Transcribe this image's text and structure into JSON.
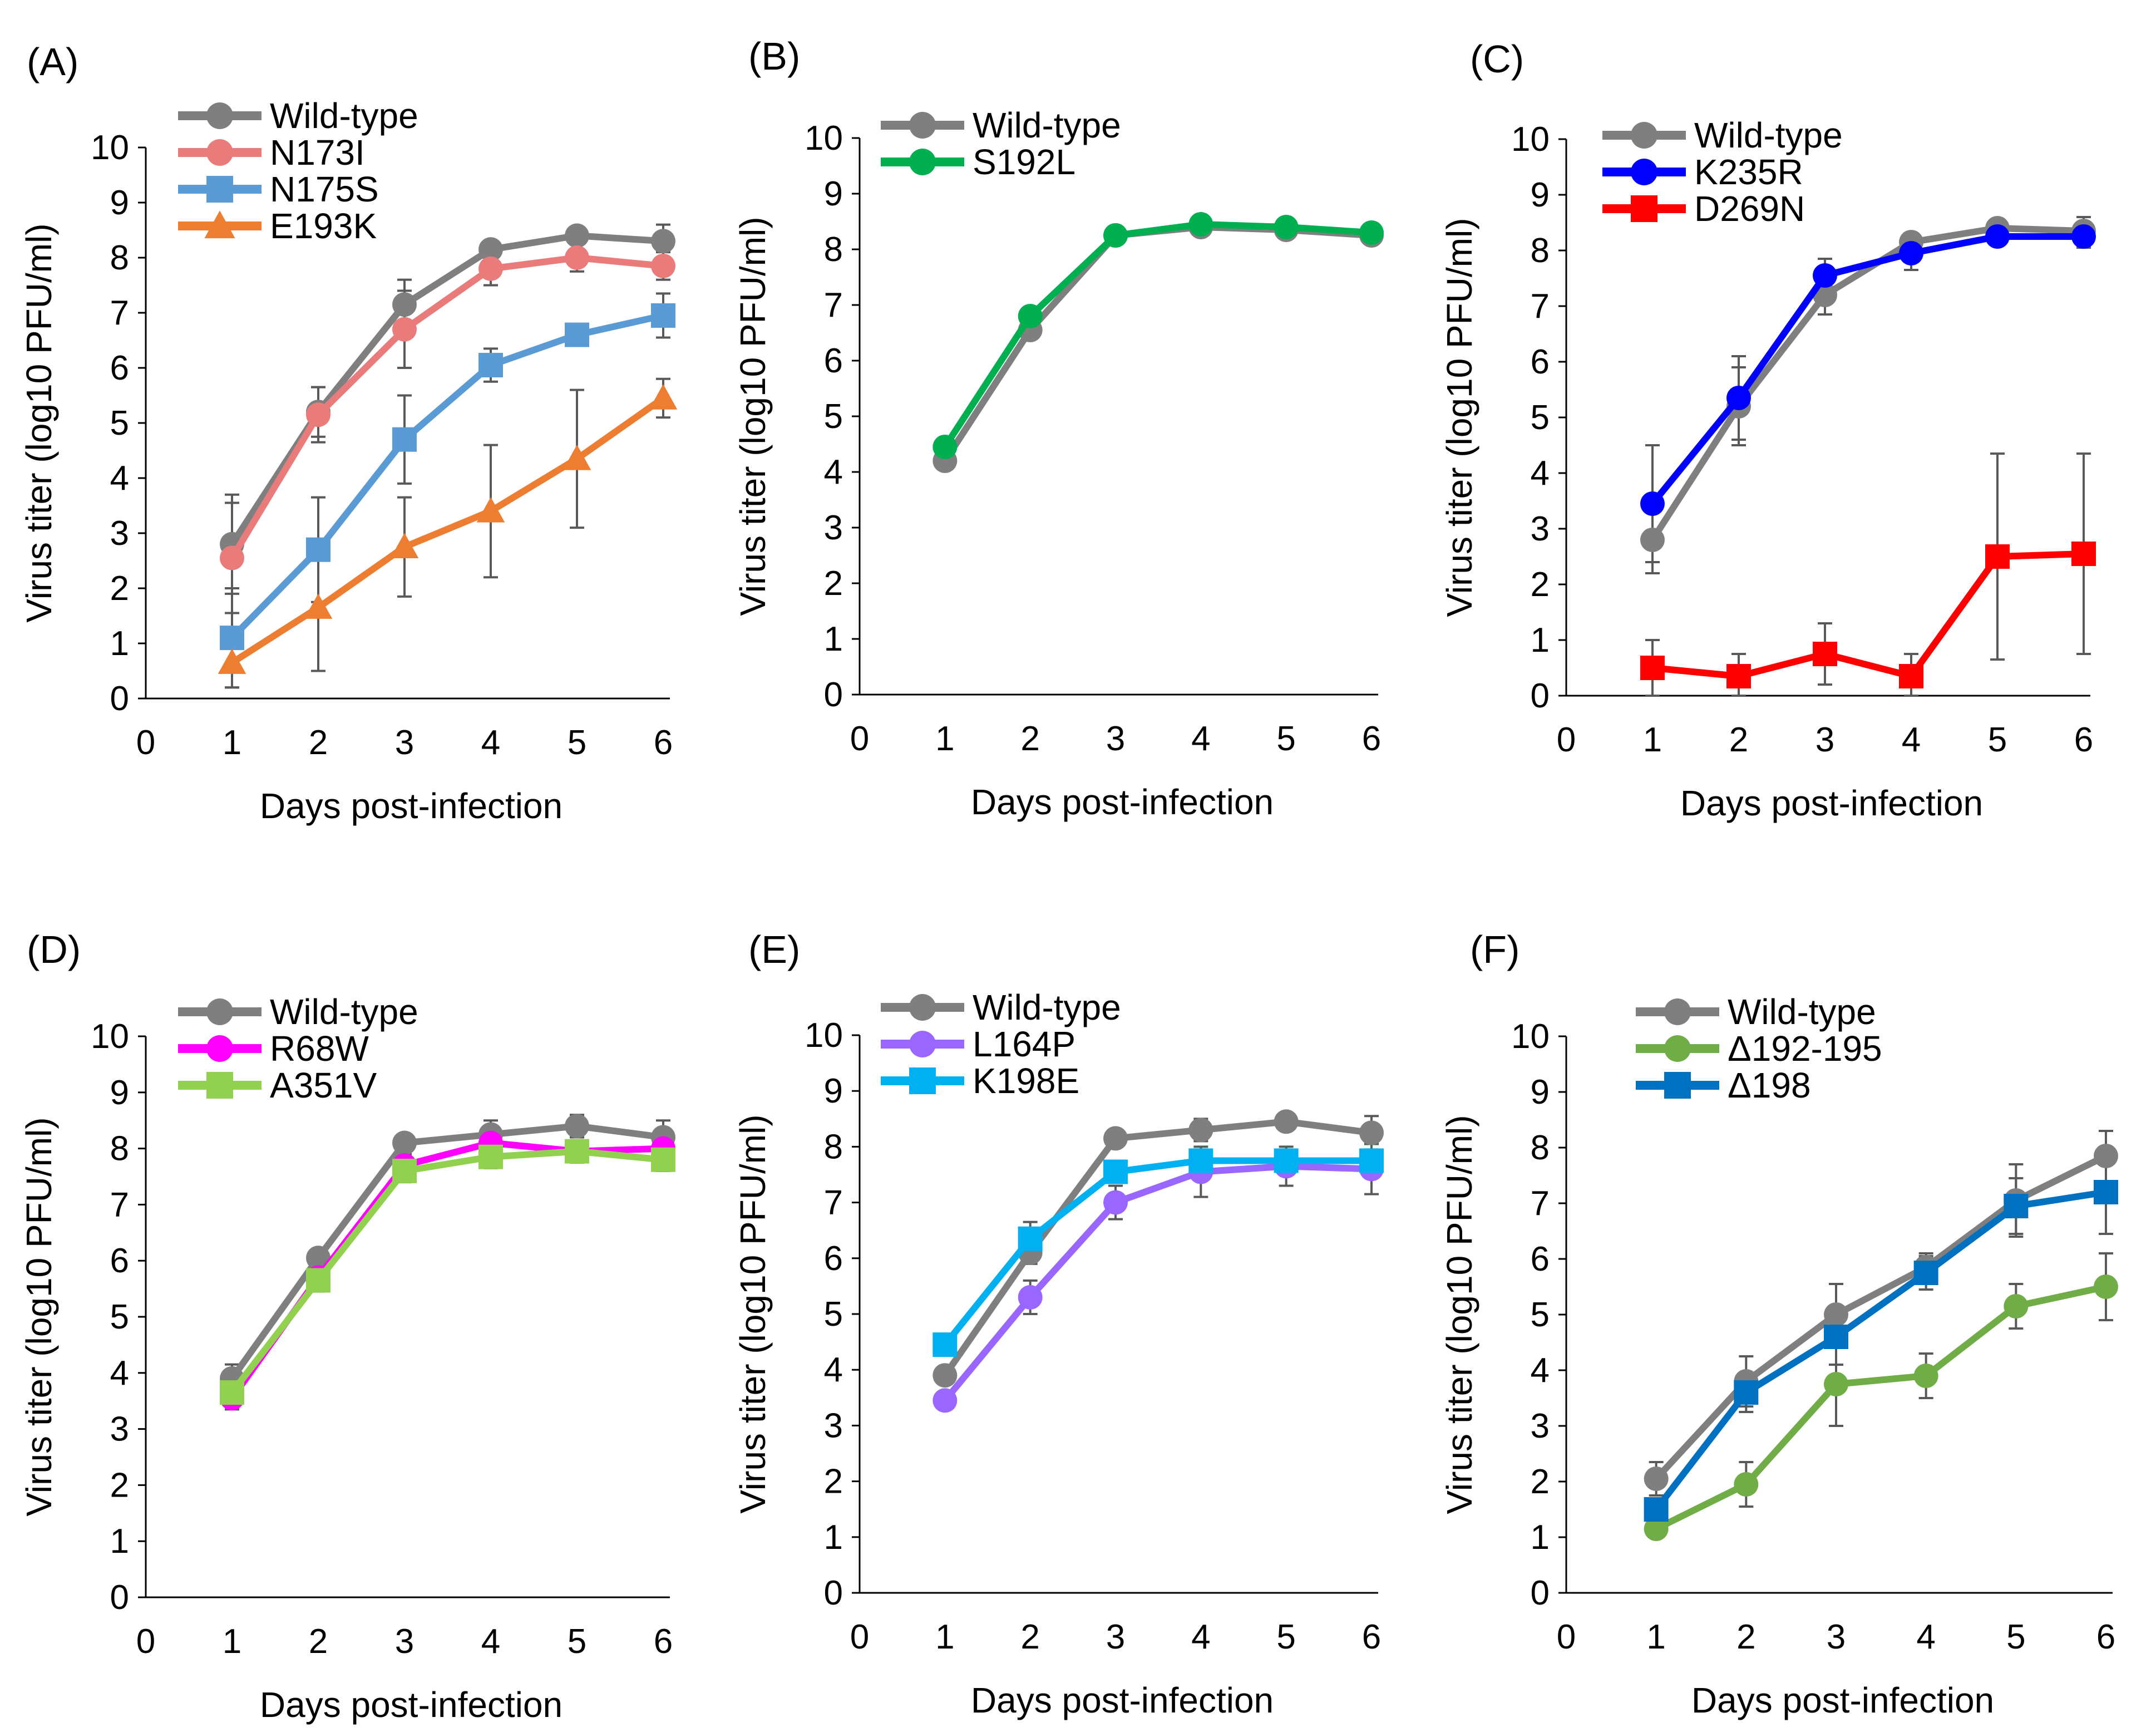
{
  "chart_data": [
    {
      "panel": "(A)",
      "type": "line",
      "xlabel": "Days  post-infection",
      "ylabel": "Virus titer (log10 PFU/ml)",
      "xlim": [
        0,
        6
      ],
      "ylim": [
        0,
        10
      ],
      "x_ticks": [
        0,
        1,
        2,
        3,
        4,
        5,
        6
      ],
      "y_ticks": [
        0,
        1,
        2,
        3,
        4,
        5,
        6,
        7,
        8,
        9,
        10
      ],
      "x": [
        1,
        2,
        3,
        4,
        5,
        6
      ],
      "legend_position": "top-left",
      "series": [
        {
          "name": "Wild-type",
          "color": "#7f7f7f",
          "marker": "circle",
          "values": [
            2.8,
            5.2,
            7.15,
            8.15,
            8.4,
            8.3
          ],
          "errors": [
            0.9,
            0.45,
            0.45,
            0.15,
            0.15,
            0.3
          ]
        },
        {
          "name": "N173I",
          "color": "#e97b7b",
          "marker": "circle",
          "values": [
            2.55,
            5.15,
            6.7,
            7.8,
            8.0,
            7.85
          ],
          "errors": [
            1.0,
            0.5,
            0.7,
            0.3,
            0.25,
            0.25
          ]
        },
        {
          "name": "N175S",
          "color": "#5b9bd5",
          "marker": "square",
          "values": [
            1.1,
            2.7,
            4.7,
            6.05,
            6.6,
            6.95
          ],
          "errors": [
            0.9,
            0.95,
            0.8,
            0.3,
            0.1,
            0.4
          ]
        },
        {
          "name": "E193K",
          "color": "#ed7d31",
          "marker": "triangle",
          "values": [
            0.65,
            1.65,
            2.75,
            3.4,
            4.35,
            5.45
          ],
          "errors": [
            0.45,
            1.15,
            0.9,
            1.2,
            1.25,
            0.35
          ]
        }
      ]
    },
    {
      "panel": "(B)",
      "type": "line",
      "xlabel": "Days  post-infection",
      "ylabel": "Virus titer (log10 PFU/ml)",
      "xlim": [
        0,
        6
      ],
      "ylim": [
        0,
        10
      ],
      "x_ticks": [
        0,
        1,
        2,
        3,
        4,
        5,
        6
      ],
      "y_ticks": [
        0,
        1,
        2,
        3,
        4,
        5,
        6,
        7,
        8,
        9,
        10
      ],
      "x": [
        1,
        2,
        3,
        4,
        5,
        6
      ],
      "legend_position": "top-left",
      "series": [
        {
          "name": "Wild-type",
          "color": "#7f7f7f",
          "marker": "circle",
          "values": [
            4.2,
            6.55,
            8.25,
            8.4,
            8.35,
            8.25
          ],
          "errors": [
            0.1,
            0.15,
            0.1,
            0.1,
            0.1,
            0.1
          ]
        },
        {
          "name": "S192L",
          "color": "#00b050",
          "marker": "circle",
          "values": [
            4.45,
            6.8,
            8.25,
            8.45,
            8.4,
            8.3
          ],
          "errors": [
            0.1,
            0.15,
            0.1,
            0.1,
            0.1,
            0.1
          ]
        }
      ]
    },
    {
      "panel": "(C)",
      "type": "line",
      "xlabel": "Days  post-infection",
      "ylabel": "Virus titer (log10 PFU/ml)",
      "xlim": [
        0,
        6
      ],
      "ylim": [
        0,
        10
      ],
      "x_ticks": [
        0,
        1,
        2,
        3,
        4,
        5,
        6
      ],
      "y_ticks": [
        0,
        1,
        2,
        3,
        4,
        5,
        6,
        7,
        8,
        9,
        10
      ],
      "x": [
        1,
        2,
        3,
        4,
        5,
        6
      ],
      "legend_position": "top-left",
      "series": [
        {
          "name": "Wild-type",
          "color": "#7f7f7f",
          "marker": "circle",
          "values": [
            2.8,
            5.2,
            7.2,
            8.15,
            8.4,
            8.35
          ],
          "errors": [
            0.6,
            0.7,
            0.35,
            0.15,
            0.1,
            0.25
          ]
        },
        {
          "name": "K235R",
          "color": "#0000ff",
          "marker": "circle",
          "values": [
            3.45,
            5.35,
            7.55,
            7.95,
            8.25,
            8.25
          ],
          "errors": [
            1.05,
            0.75,
            0.3,
            0.3,
            0.15,
            0.2
          ]
        },
        {
          "name": "D269N",
          "color": "#ff0000",
          "marker": "square",
          "values": [
            0.5,
            0.35,
            0.75,
            0.35,
            2.5,
            2.55
          ],
          "errors": [
            0.5,
            0.4,
            0.55,
            0.4,
            1.85,
            1.8
          ]
        }
      ]
    },
    {
      "panel": "(D)",
      "type": "line",
      "xlabel": "Days  post-infection",
      "ylabel": "Virus titer (log10 PFU/ml)",
      "xlim": [
        0,
        6
      ],
      "ylim": [
        0,
        10
      ],
      "x_ticks": [
        0,
        1,
        2,
        3,
        4,
        5,
        6
      ],
      "y_ticks": [
        0,
        1,
        2,
        3,
        4,
        5,
        6,
        7,
        8,
        9,
        10
      ],
      "x": [
        1,
        2,
        3,
        4,
        5,
        6
      ],
      "legend_position": "top-left",
      "series": [
        {
          "name": "Wild-type",
          "color": "#7f7f7f",
          "marker": "circle",
          "values": [
            3.9,
            6.05,
            8.1,
            8.25,
            8.4,
            8.2
          ],
          "errors": [
            0.25,
            0.15,
            0.15,
            0.25,
            0.2,
            0.3
          ]
        },
        {
          "name": "R68W",
          "color": "#ff00ff",
          "marker": "circle",
          "values": [
            3.55,
            5.7,
            7.7,
            8.1,
            7.95,
            8.0
          ],
          "errors": [
            0.2,
            0.2,
            0.2,
            0.2,
            0.2,
            0.2
          ]
        },
        {
          "name": "A351V",
          "color": "#92d050",
          "marker": "square",
          "values": [
            3.65,
            5.65,
            7.6,
            7.85,
            7.95,
            7.8
          ],
          "errors": [
            0.2,
            0.2,
            0.2,
            0.2,
            0.2,
            0.2
          ]
        }
      ]
    },
    {
      "panel": "(E)",
      "type": "line",
      "xlabel": "Days  post-infection",
      "ylabel": "Virus titer (log10 PFU/ml)",
      "xlim": [
        0,
        6
      ],
      "ylim": [
        0,
        10
      ],
      "x_ticks": [
        0,
        1,
        2,
        3,
        4,
        5,
        6
      ],
      "y_ticks": [
        0,
        1,
        2,
        3,
        4,
        5,
        6,
        7,
        8,
        9,
        10
      ],
      "x": [
        1,
        2,
        3,
        4,
        5,
        6
      ],
      "legend_position": "top-left",
      "series": [
        {
          "name": "Wild-type",
          "color": "#7f7f7f",
          "marker": "circle",
          "values": [
            3.9,
            6.1,
            8.15,
            8.3,
            8.45,
            8.25
          ],
          "errors": [
            0.1,
            0.2,
            0.1,
            0.2,
            0.1,
            0.3
          ]
        },
        {
          "name": "L164P",
          "color": "#9966ff",
          "marker": "circle",
          "values": [
            3.45,
            5.3,
            7.0,
            7.55,
            7.65,
            7.6
          ],
          "errors": [
            0.15,
            0.3,
            0.3,
            0.45,
            0.35,
            0.45
          ]
        },
        {
          "name": "K198E",
          "color": "#00b0f0",
          "marker": "square",
          "values": [
            4.45,
            6.35,
            7.55,
            7.75,
            7.75,
            7.75
          ],
          "errors": [
            0.1,
            0.3,
            0.2,
            0.2,
            0.2,
            0.3
          ]
        }
      ]
    },
    {
      "panel": "(F)",
      "type": "line",
      "xlabel": "Days  post-infection",
      "ylabel": "Virus titer (log10 PFU/ml)",
      "xlim": [
        0,
        6
      ],
      "ylim": [
        0,
        10
      ],
      "x_ticks": [
        0,
        1,
        2,
        3,
        4,
        5,
        6
      ],
      "y_ticks": [
        0,
        1,
        2,
        3,
        4,
        5,
        6,
        7,
        8,
        9,
        10
      ],
      "x": [
        1,
        2,
        3,
        4,
        5,
        6
      ],
      "legend_position": "top-left",
      "series": [
        {
          "name": "Wild-type",
          "color": "#7f7f7f",
          "marker": "circle",
          "values": [
            2.05,
            3.8,
            5.0,
            5.85,
            7.05,
            7.85
          ],
          "errors": [
            0.3,
            0.45,
            0.55,
            0.25,
            0.65,
            0.45
          ]
        },
        {
          "name": "Δ192-195",
          "color": "#70ad47",
          "marker": "circle",
          "values": [
            1.15,
            1.95,
            3.75,
            3.9,
            5.15,
            5.5
          ],
          "errors": [
            0.1,
            0.4,
            0.75,
            0.4,
            0.4,
            0.6
          ]
        },
        {
          "name": "Δ198",
          "color": "#0070c0",
          "marker": "square",
          "values": [
            1.5,
            3.6,
            4.6,
            5.75,
            6.95,
            7.2
          ],
          "errors": [
            0.2,
            0.35,
            0.5,
            0.3,
            0.5,
            0.75
          ]
        }
      ]
    }
  ]
}
